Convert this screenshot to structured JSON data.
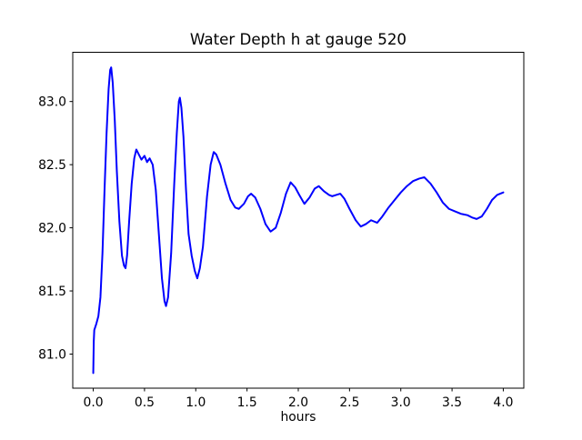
{
  "figure": {
    "background_color": "#ffffff",
    "frame_color": "#000000",
    "text_color": "#000000"
  },
  "chart_data": {
    "type": "line",
    "title": "Water Depth h at gauge 520",
    "xlabel": "hours",
    "ylabel": "",
    "grid": false,
    "legend": null,
    "line_color": "#0000ff",
    "xlim": [
      -0.2,
      4.2
    ],
    "ylim": [
      80.73,
      83.39
    ],
    "x_ticks": [
      0.0,
      0.5,
      1.0,
      1.5,
      2.0,
      2.5,
      3.0,
      3.5,
      4.0
    ],
    "x_tick_labels": [
      "0.0",
      "0.5",
      "1.0",
      "1.5",
      "2.0",
      "2.5",
      "3.0",
      "3.5",
      "4.0"
    ],
    "y_ticks": [
      81.0,
      81.5,
      82.0,
      82.5,
      83.0
    ],
    "y_tick_labels": [
      "81.0",
      "81.5",
      "82.0",
      "82.5",
      "83.0"
    ],
    "series": [
      {
        "name": "water-depth-h",
        "color": "#0000ff",
        "x": [
          0.0,
          0.005,
          0.01,
          0.03,
          0.05,
          0.07,
          0.09,
          0.11,
          0.13,
          0.15,
          0.165,
          0.175,
          0.19,
          0.21,
          0.23,
          0.255,
          0.28,
          0.3,
          0.315,
          0.33,
          0.35,
          0.375,
          0.4,
          0.42,
          0.445,
          0.47,
          0.5,
          0.525,
          0.55,
          0.58,
          0.61,
          0.64,
          0.67,
          0.695,
          0.71,
          0.73,
          0.76,
          0.79,
          0.815,
          0.835,
          0.845,
          0.86,
          0.88,
          0.905,
          0.93,
          0.96,
          0.99,
          1.015,
          1.04,
          1.07,
          1.11,
          1.145,
          1.175,
          1.2,
          1.24,
          1.29,
          1.34,
          1.385,
          1.42,
          1.47,
          1.51,
          1.54,
          1.58,
          1.63,
          1.68,
          1.73,
          1.78,
          1.83,
          1.88,
          1.925,
          1.97,
          2.01,
          2.06,
          2.11,
          2.16,
          2.2,
          2.25,
          2.3,
          2.33,
          2.37,
          2.41,
          2.45,
          2.5,
          2.56,
          2.61,
          2.66,
          2.71,
          2.77,
          2.82,
          2.88,
          2.94,
          3.0,
          3.06,
          3.12,
          3.18,
          3.23,
          3.29,
          3.35,
          3.41,
          3.47,
          3.53,
          3.59,
          3.65,
          3.7,
          3.74,
          3.79,
          3.84,
          3.89,
          3.94,
          4.0
        ],
        "y": [
          80.85,
          81.1,
          81.19,
          81.24,
          81.3,
          81.45,
          81.8,
          82.3,
          82.75,
          83.1,
          83.25,
          83.27,
          83.15,
          82.85,
          82.45,
          82.05,
          81.78,
          81.7,
          81.68,
          81.78,
          82.05,
          82.35,
          82.55,
          82.62,
          82.58,
          82.54,
          82.57,
          82.52,
          82.55,
          82.5,
          82.3,
          81.95,
          81.6,
          81.42,
          81.38,
          81.45,
          81.8,
          82.35,
          82.75,
          83.0,
          83.03,
          82.95,
          82.72,
          82.3,
          81.95,
          81.78,
          81.66,
          81.6,
          81.68,
          81.85,
          82.25,
          82.5,
          82.6,
          82.58,
          82.5,
          82.35,
          82.22,
          82.16,
          82.15,
          82.19,
          82.25,
          82.27,
          82.24,
          82.15,
          82.03,
          81.97,
          82.0,
          82.12,
          82.27,
          82.36,
          82.32,
          82.26,
          82.19,
          82.24,
          82.31,
          82.33,
          82.29,
          82.26,
          82.25,
          82.26,
          82.27,
          82.23,
          82.15,
          82.06,
          82.01,
          82.03,
          82.06,
          82.04,
          82.09,
          82.16,
          82.22,
          82.28,
          82.33,
          82.37,
          82.39,
          82.4,
          82.35,
          82.28,
          82.2,
          82.15,
          82.13,
          82.11,
          82.1,
          82.08,
          82.07,
          82.09,
          82.15,
          82.22,
          82.26,
          82.28
        ]
      }
    ]
  }
}
